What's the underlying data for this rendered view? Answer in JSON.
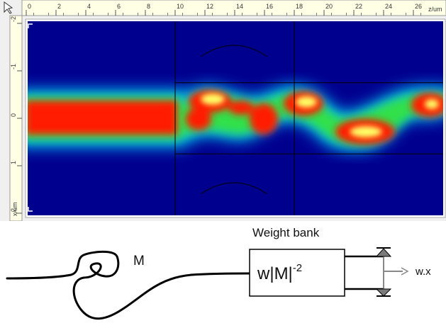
{
  "simulation": {
    "top_ruler": {
      "ticks": [
        "0",
        "2",
        "4",
        "6",
        "8",
        "10",
        "12",
        "14",
        "16",
        "18",
        "20",
        "22",
        "24",
        "26"
      ],
      "unit": "z/um"
    },
    "left_ruler": {
      "ticks": [
        "-2",
        "-1",
        "0",
        "1",
        "2"
      ],
      "unit": "x/um"
    },
    "colors": {
      "background": "#00008f",
      "low": "#00c8ff",
      "mid": "#31e048",
      "high": "#ff1a00",
      "peak": "#ffff66",
      "divider": "#000000"
    },
    "section_dividers_z": [
      10,
      18
    ],
    "waveguide_boundaries_x": [
      -0.75,
      0.75
    ]
  },
  "diagram": {
    "fiber_label": "M",
    "block_title": "Weight bank",
    "block_formula_main": "w|M|",
    "block_formula_exp": "-2",
    "output_label": "w.x"
  }
}
